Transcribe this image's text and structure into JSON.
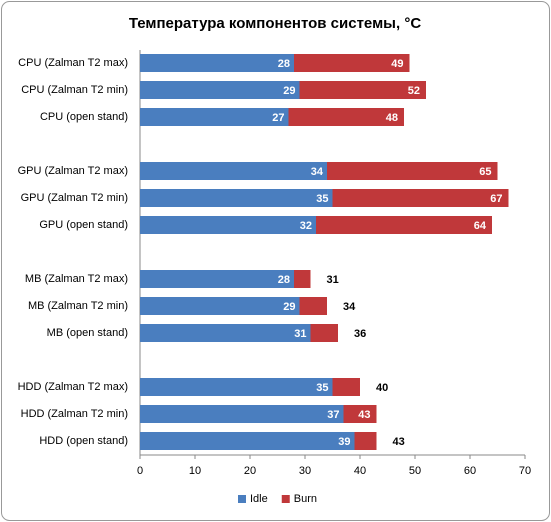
{
  "chart_data": {
    "type": "bar",
    "orientation": "horizontal",
    "overlap": true,
    "title": "Температура компонентов системы, °C",
    "categories": [
      "CPU (Zalman  T2 max)",
      "CPU (Zalman  T2 min)",
      "CPU (open stand)",
      null,
      "GPU (Zalman  T2 max)",
      "GPU (Zalman  T2 min)",
      "GPU (open stand)",
      null,
      "MB (Zalman  T2 max)",
      "MB (Zalman  T2 min)",
      "MB (open stand)",
      null,
      "HDD (Zalman  T2 max)",
      "HDD (Zalman  T2 min)",
      "HDD (open stand)"
    ],
    "series": [
      {
        "name": "Idle",
        "color": "#4a7ebf",
        "values": [
          28,
          29,
          27,
          null,
          34,
          35,
          32,
          null,
          28,
          29,
          31,
          null,
          35,
          37,
          39
        ]
      },
      {
        "name": "Burn",
        "color": "#c0383a",
        "values": [
          49,
          52,
          48,
          null,
          65,
          67,
          64,
          null,
          31,
          34,
          36,
          null,
          40,
          43,
          43
        ]
      }
    ],
    "xlim": [
      0,
      70
    ],
    "xticks": [
      0,
      10,
      20,
      30,
      40,
      50,
      60,
      70
    ],
    "grid": false,
    "legend": "bottom"
  }
}
